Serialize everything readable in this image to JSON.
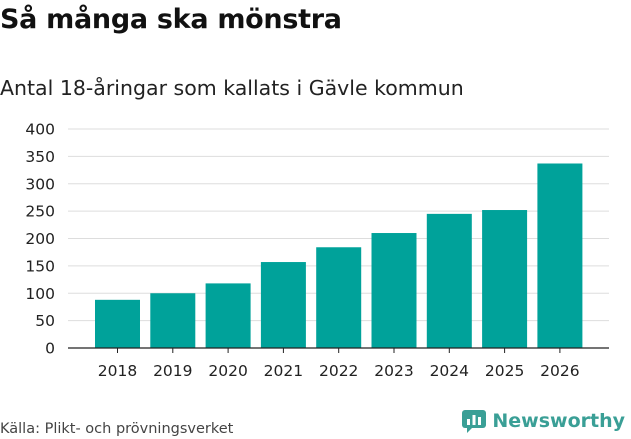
{
  "title": "Så många ska mönstra",
  "subtitle": "Antal 18-åringar som kallats i Gävle kommun",
  "source": "Källa: Plikt- och prövningsverket",
  "brand": {
    "name": "Newsworthy",
    "icon": "newsworthy-logo-icon",
    "color": "#3a9f96"
  },
  "colors": {
    "bar": "#00a29a",
    "grid": "#dddddd",
    "axis": "#222222"
  },
  "chart_data": {
    "type": "bar",
    "title": "Så många ska mönstra",
    "subtitle": "Antal 18-åringar som kallats i Gävle kommun",
    "xlabel": "",
    "ylabel": "",
    "categories": [
      "2018",
      "2019",
      "2020",
      "2021",
      "2022",
      "2023",
      "2024",
      "2025",
      "2026"
    ],
    "values": [
      88,
      100,
      118,
      157,
      184,
      210,
      245,
      252,
      337
    ],
    "ylim": [
      0,
      400
    ],
    "yticks": [
      0,
      50,
      100,
      150,
      200,
      250,
      300,
      350,
      400
    ],
    "grid": true
  }
}
